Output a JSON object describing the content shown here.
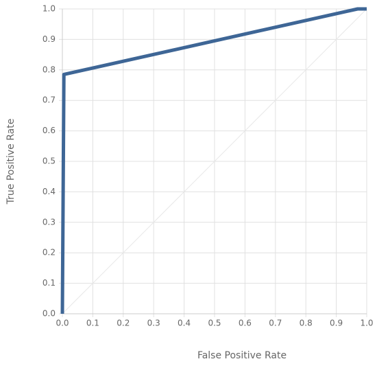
{
  "chart_data": {
    "type": "line",
    "xlabel": "False Positive Rate",
    "ylabel": "True Positive Rate",
    "x": [
      0,
      0.005,
      0.97,
      1
    ],
    "series": [
      {
        "color": "#3e6696",
        "values": [
          0,
          0.785,
          1,
          1
        ]
      }
    ],
    "xlim": [
      0,
      1
    ],
    "ylim": [
      0,
      1
    ],
    "xticks": [
      {
        "value": 0,
        "label": "0.0"
      },
      0.1,
      0.2,
      0.3,
      0.4,
      0.5,
      0.6,
      0.7,
      0.8,
      0.9,
      {
        "value": 1,
        "label": "1.0"
      }
    ],
    "yticks": [
      {
        "value": 0,
        "label": "0.0"
      },
      0.1,
      0.2,
      0.3,
      0.4,
      0.5,
      0.6,
      0.7,
      0.8,
      0.9,
      {
        "value": 1,
        "label": "1.0"
      }
    ],
    "grid": true
  }
}
